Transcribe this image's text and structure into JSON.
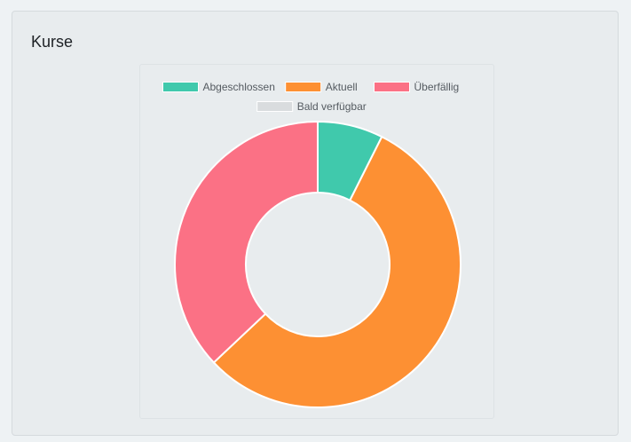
{
  "card": {
    "title": "Kurse"
  },
  "chart_data": {
    "type": "pie",
    "title": "",
    "donut": true,
    "legend_position": "top",
    "categories": [
      "Abgeschlossen",
      "Aktuell",
      "Überfällig",
      "Bald verfügbar"
    ],
    "values": [
      2,
      15,
      10,
      0
    ],
    "colors": [
      "#40c9ac",
      "#fd9033",
      "#fb7185",
      "#d9dcde"
    ]
  }
}
